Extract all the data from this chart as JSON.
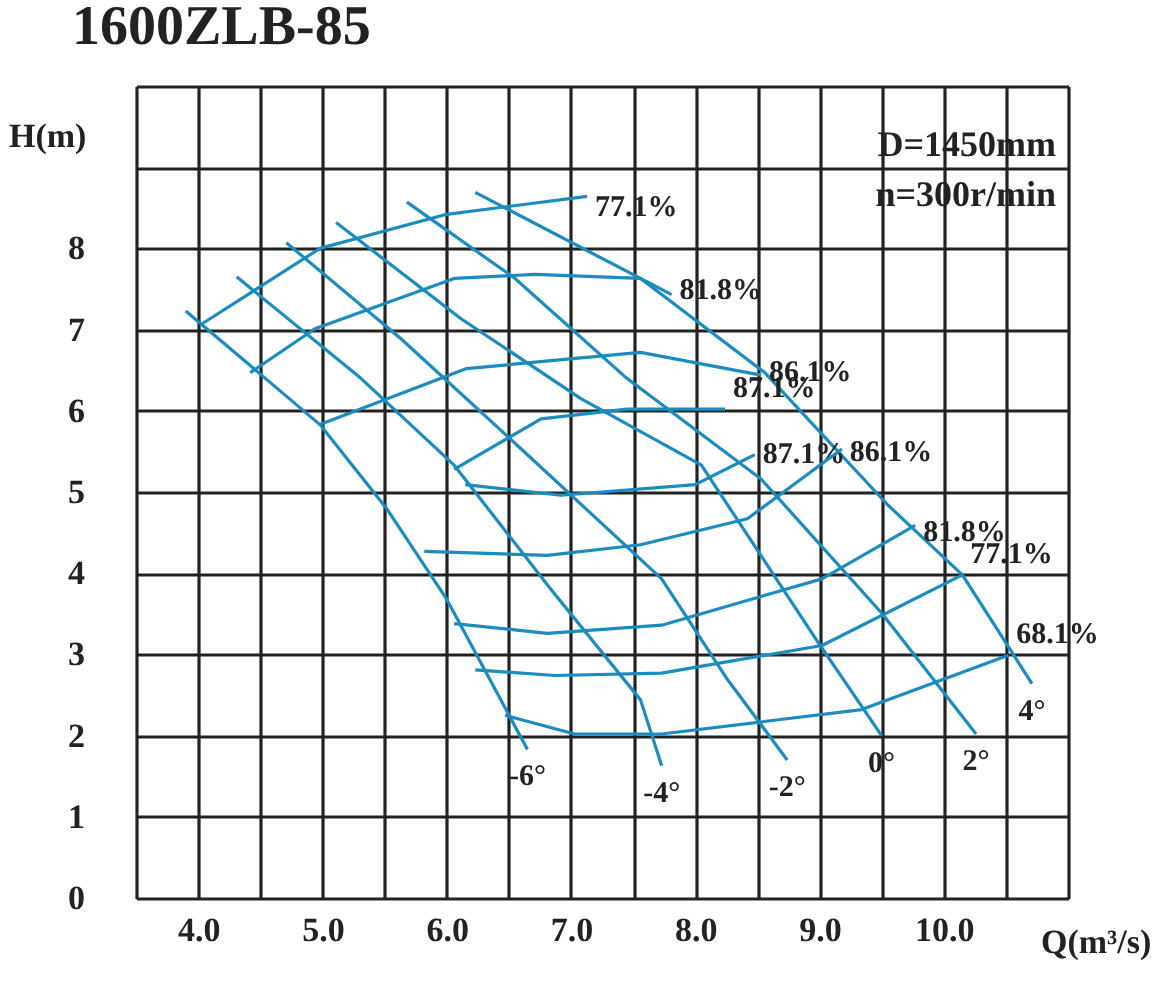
{
  "chart_data": {
    "type": "line",
    "title": "1600ZLB-85",
    "xlabel": "Q(m³/s)",
    "ylabel": "H(m)",
    "xlim": [
      3.5,
      11.0
    ],
    "ylim": [
      0,
      10
    ],
    "xticks": [
      {
        "value": 3.5,
        "label": null
      },
      {
        "value": 4,
        "label": "4.0"
      },
      {
        "value": 4.5,
        "label": null
      },
      {
        "value": 5,
        "label": "5.0"
      },
      {
        "value": 5.5,
        "label": null
      },
      {
        "value": 6,
        "label": "6.0"
      },
      {
        "value": 6.5,
        "label": null
      },
      {
        "value": 7,
        "label": "7.0"
      },
      {
        "value": 7.5,
        "label": null
      },
      {
        "value": 8,
        "label": "8.0"
      },
      {
        "value": 8.5,
        "label": null
      },
      {
        "value": 9,
        "label": "9.0"
      },
      {
        "value": 9.5,
        "label": null
      },
      {
        "value": 10,
        "label": "10.0"
      },
      {
        "value": 10.5,
        "label": null
      },
      {
        "value": 11,
        "label": null
      }
    ],
    "yticks": [
      0,
      1,
      2,
      3,
      4,
      5,
      6,
      7,
      8,
      {
        "value": 9,
        "label": null
      },
      {
        "value": 10,
        "label": null
      }
    ],
    "grid": true,
    "marker": "none",
    "line_style": "solid",
    "series": [
      {
        "name": "-6°",
        "color": "#1a8cc0",
        "x": [
          3.9,
          4.98,
          5.52,
          6.0,
          6.65
        ],
        "values": [
          7.23,
          5.83,
          4.79,
          3.68,
          1.83
        ]
      },
      {
        "name": "-4°",
        "color": "#1a8cc0",
        "x": [
          4.31,
          5.31,
          6.06,
          6.84,
          7.56,
          7.73
        ],
        "values": [
          7.65,
          6.4,
          5.33,
          3.8,
          2.44,
          1.63
        ]
      },
      {
        "name": "-2°",
        "color": "#1a8cc0",
        "x": [
          4.71,
          5.63,
          6.6,
          7.73,
          8.26,
          8.74
        ],
        "values": [
          8.07,
          6.89,
          5.53,
          3.93,
          2.69,
          1.7
        ]
      },
      {
        "name": "0°",
        "color": "#1a8cc0",
        "x": [
          5.11,
          6.11,
          7.08,
          8.05,
          8.58,
          8.97,
          9.5
        ],
        "values": [
          8.32,
          7.14,
          6.15,
          5.33,
          4.1,
          3.19,
          2.0
        ]
      },
      {
        "name": "2°",
        "color": "#1a8cc0",
        "x": [
          5.68,
          6.55,
          7.45,
          8.53,
          9.5,
          10.26
        ],
        "values": [
          8.57,
          7.63,
          6.4,
          5.16,
          3.51,
          2.02
        ]
      },
      {
        "name": "4°",
        "color": "#1a8cc0",
        "x": [
          6.23,
          7.56,
          8.56,
          9.55,
          10.15,
          10.71
        ],
        "values": [
          8.69,
          7.63,
          6.47,
          4.84,
          3.98,
          2.64
        ]
      },
      {
        "name": "77.1%",
        "color": "#1a8cc0",
        "x": [
          4.02,
          4.98,
          6.0,
          7.13
        ],
        "values": [
          7.06,
          8.0,
          8.42,
          8.64
        ]
      },
      {
        "name": "81.8%",
        "color": "#1a8cc0",
        "x": [
          4.42,
          4.94,
          6.06,
          6.71,
          7.56,
          7.81
        ],
        "values": [
          6.47,
          7.01,
          7.63,
          7.68,
          7.63,
          7.43
        ]
      },
      {
        "name": "86.1%",
        "color": "#1a8cc0",
        "x": [
          4.98,
          6.16,
          7.56,
          8.53
        ],
        "values": [
          5.83,
          6.52,
          6.72,
          6.44
        ]
      },
      {
        "name": "87.1%",
        "color": "#1a8cc0",
        "x": [
          6.06,
          6.76,
          7.45,
          8.24
        ],
        "values": [
          5.28,
          5.9,
          6.02,
          6.02
        ]
      },
      {
        "name": "87.1%",
        "color": "#1a8cc0",
        "x": [
          6.15,
          6.92,
          8.0,
          8.48
        ],
        "values": [
          5.09,
          4.96,
          5.09,
          5.46
        ]
      },
      {
        "name": "86.1%",
        "color": "#1a8cc0",
        "x": [
          5.82,
          6.81,
          7.56,
          8.42,
          9.18
        ],
        "values": [
          4.27,
          4.22,
          4.35,
          4.67,
          5.53
        ]
      },
      {
        "name": "81.8%",
        "color": "#1a8cc0",
        "x": [
          6.06,
          6.81,
          7.73,
          9.02,
          9.77
        ],
        "values": [
          3.38,
          3.26,
          3.36,
          3.93,
          4.59
        ]
      },
      {
        "name": "77.1%",
        "color": "#1a8cc0",
        "x": [
          6.23,
          6.87,
          7.73,
          9.02,
          10.15
        ],
        "values": [
          2.81,
          2.74,
          2.77,
          3.11,
          3.98
        ]
      },
      {
        "name": "68.1%",
        "color": "#1a8cc0",
        "x": [
          6.47,
          7.03,
          7.73,
          9.34,
          10.52
        ],
        "values": [
          2.25,
          2.02,
          2.02,
          2.32,
          2.99
        ]
      }
    ],
    "annotations": [
      "D=1450mm",
      "n=300r/min"
    ]
  }
}
